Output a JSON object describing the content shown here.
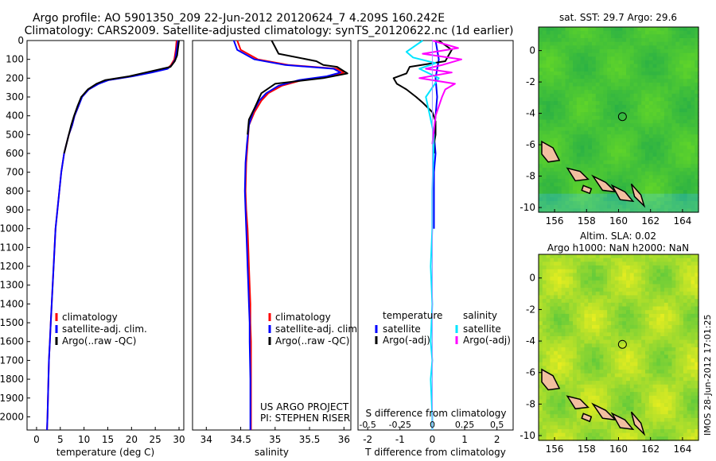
{
  "header": {
    "title_line1": "Argo profile: AO 5901350_209 22-Jun-2012 20120624_7 4.209S 160.242E",
    "title_line2": "Climatology: CARS2009. Satellite-adjusted climatology: synTS_20120622.nc (1d earlier)"
  },
  "side_stamp": "IMOS 28-Jun-2012 17:01:25",
  "colors": {
    "climatology": "#ff0000",
    "satellite": "#0000ff",
    "argo": "#000000",
    "sat_salinity": "#00e5ff",
    "argo_salinity": "#ff00ff",
    "land": "#f2bfa0",
    "sea": "#33cc33"
  },
  "chart_data": [
    {
      "id": "temperature",
      "type": "line",
      "xlabel": "temperature (deg C)",
      "ylabel": "",
      "xlim": [
        -2,
        31
      ],
      "ylim": [
        2070,
        0
      ],
      "xticks": [
        0,
        5,
        10,
        15,
        20,
        25,
        30
      ],
      "yticks": [
        0,
        100,
        200,
        300,
        400,
        500,
        600,
        700,
        800,
        900,
        1000,
        1100,
        1200,
        1300,
        1400,
        1500,
        1600,
        1700,
        1800,
        1900,
        2000
      ],
      "legend": [
        "climatology",
        "satellite-adj. clim.",
        "Argo(..raw -QC)"
      ],
      "series": [
        {
          "name": "climatology",
          "color": "#ff0000",
          "x": [
            29.5,
            29.3,
            29.0,
            28.3,
            27.5,
            24.0,
            20.0,
            15.0,
            13.0,
            11.0,
            9.5,
            8.8,
            8.0,
            7.5,
            6.8,
            6.3,
            5.8,
            5.2,
            4.8,
            4.4,
            4.0,
            3.8,
            3.6,
            3.4,
            3.2,
            3.0,
            2.8,
            2.6,
            2.5,
            2.4,
            2.3,
            2.2
          ],
          "y": [
            0,
            50,
            100,
            130,
            150,
            170,
            190,
            210,
            230,
            260,
            300,
            350,
            400,
            450,
            500,
            550,
            600,
            700,
            800,
            900,
            1000,
            1100,
            1200,
            1300,
            1400,
            1500,
            1600,
            1700,
            1800,
            1900,
            2000,
            2070
          ]
        },
        {
          "name": "satellite-adj. clim.",
          "color": "#0000ff",
          "x": [
            29.8,
            29.5,
            29.2,
            28.5,
            27.6,
            24.3,
            20.2,
            15.2,
            13.1,
            11.0,
            9.6,
            8.8,
            8.0,
            7.5,
            6.8,
            6.3,
            5.8,
            5.2,
            4.8,
            4.4,
            4.0,
            3.8,
            3.6,
            3.4,
            3.2,
            3.0,
            2.8,
            2.6,
            2.5,
            2.4,
            2.3,
            2.2
          ],
          "y": [
            0,
            50,
            100,
            130,
            150,
            170,
            190,
            210,
            230,
            260,
            300,
            350,
            400,
            450,
            500,
            550,
            600,
            700,
            800,
            900,
            1000,
            1100,
            1200,
            1300,
            1400,
            1500,
            1600,
            1700,
            1800,
            1900,
            2000,
            2070
          ]
        },
        {
          "name": "Argo(..raw -QC)",
          "color": "#000000",
          "x": [
            30.0,
            29.8,
            29.6,
            29.1,
            28.2,
            23.0,
            19.5,
            14.5,
            12.6,
            10.8,
            9.4,
            8.6,
            7.9,
            7.3,
            6.8,
            6.3,
            5.8
          ],
          "y": [
            0,
            40,
            80,
            110,
            140,
            170,
            190,
            210,
            230,
            260,
            300,
            350,
            400,
            450,
            500,
            550,
            600
          ]
        }
      ]
    },
    {
      "id": "salinity",
      "type": "line",
      "xlabel": "salinity",
      "ylabel": "",
      "xlim": [
        33.8,
        36.1
      ],
      "ylim": [
        2070,
        0
      ],
      "xticks": [
        34,
        34.5,
        35,
        35.5,
        36
      ],
      "legend": [
        "climatology",
        "satellite-adj. clim.",
        "Argo(..raw -QC)"
      ],
      "annotation": [
        "US ARGO PROJECT",
        "PI: STEPHEN RISER"
      ],
      "series": [
        {
          "name": "climatology",
          "color": "#ff0000",
          "x": [
            34.45,
            34.5,
            34.75,
            35.2,
            35.9,
            36.0,
            35.8,
            35.4,
            35.1,
            34.9,
            34.8,
            34.7,
            34.62,
            34.6,
            34.58,
            34.57,
            34.58,
            34.6,
            34.61,
            34.62,
            34.63,
            34.64,
            34.64,
            34.65,
            34.65,
            34.65
          ],
          "y": [
            0,
            50,
            100,
            130,
            150,
            170,
            190,
            210,
            240,
            280,
            320,
            380,
            450,
            550,
            650,
            800,
            900,
            1000,
            1100,
            1200,
            1300,
            1400,
            1500,
            1600,
            1800,
            2070
          ]
        },
        {
          "name": "satellite-adj. clim.",
          "color": "#0000ff",
          "x": [
            34.4,
            34.45,
            34.7,
            35.15,
            35.85,
            35.95,
            35.75,
            35.35,
            35.05,
            34.87,
            34.77,
            34.68,
            34.62,
            34.59,
            34.57,
            34.56,
            34.57,
            34.58,
            34.59,
            34.6,
            34.61,
            34.62,
            34.63,
            34.63,
            34.64,
            34.64
          ],
          "y": [
            0,
            50,
            100,
            130,
            150,
            170,
            190,
            210,
            240,
            280,
            320,
            380,
            450,
            550,
            650,
            800,
            900,
            1000,
            1100,
            1200,
            1300,
            1400,
            1500,
            1600,
            1800,
            2070
          ]
        },
        {
          "name": "Argo(..raw -QC)",
          "color": "#000000",
          "x": [
            34.95,
            35.05,
            35.6,
            35.7,
            35.9,
            36.05,
            35.7,
            35.0,
            34.8,
            34.75,
            34.7,
            34.62,
            34.6
          ],
          "y": [
            0,
            70,
            110,
            130,
            140,
            175,
            200,
            230,
            280,
            320,
            360,
            420,
            500
          ]
        }
      ]
    },
    {
      "id": "difference",
      "type": "line",
      "xlabel": "T difference from climatology",
      "xlabel_top": "S difference from climatology",
      "xlim": [
        -2.3,
        2.5
      ],
      "ylim": [
        2070,
        0
      ],
      "xticks": [
        -2,
        -1,
        0,
        1,
        2
      ],
      "xticks_top": [
        "-0.5",
        "-0.25",
        "0",
        "0.25",
        "0.5"
      ],
      "xticks_top_positions": [
        -2,
        -1,
        0,
        1,
        2
      ],
      "legend_temperature": {
        "title": "temperature",
        "items": [
          "satellite",
          "Argo(-adj)"
        ]
      },
      "legend_salinity": {
        "title": "salinity",
        "items": [
          "satellite",
          "Argo(-adj)"
        ]
      },
      "series": [
        {
          "name": "temperature satellite",
          "color": "#0000ff",
          "x": [
            0.1,
            0.2,
            0.1,
            0.15,
            0.1,
            0.05,
            0.1,
            0.05,
            0.05,
            0.05,
            0.05
          ],
          "y": [
            0,
            100,
            200,
            300,
            400,
            500,
            600,
            700,
            800,
            900,
            1000
          ]
        },
        {
          "name": "temperature Argo(-adj)",
          "color": "#000000",
          "x": [
            0.2,
            0.6,
            0.4,
            -0.7,
            -0.8,
            -1.2,
            -1.1,
            -0.8,
            -0.5,
            -0.3,
            0.0,
            0.1,
            0.1,
            0.05,
            0.05
          ],
          "y": [
            0,
            50,
            110,
            140,
            175,
            200,
            230,
            260,
            300,
            330,
            380,
            430,
            500,
            550,
            600
          ]
        },
        {
          "name": "salinity satellite",
          "color": "#00e5ff",
          "x": [
            -0.3,
            -0.8,
            -0.6,
            0.1,
            -0.4,
            0.2,
            -0.2,
            0.05,
            0.0,
            0.0,
            -0.05,
            0.0,
            -0.05,
            0.0,
            -0.05,
            0.0,
            0.0
          ],
          "y": [
            0,
            60,
            90,
            120,
            150,
            200,
            300,
            500,
            800,
            1000,
            1200,
            1400,
            1600,
            1700,
            1800,
            2000,
            2070
          ]
        },
        {
          "name": "salinity Argo(-adj)",
          "color": "#ff00ff",
          "x": [
            0.0,
            0.8,
            -0.3,
            0.9,
            0.3,
            -0.2,
            0.6,
            -0.4,
            0.7,
            0.4,
            0.3,
            0.1,
            0.0
          ],
          "y": [
            0,
            40,
            70,
            100,
            130,
            150,
            170,
            200,
            230,
            260,
            300,
            400,
            550
          ]
        }
      ]
    },
    {
      "id": "sst-map",
      "type": "heatmap",
      "title": "sat. SST: 29.7 Argo: 29.6",
      "xlim": [
        155,
        165
      ],
      "ylim": [
        -10.3,
        1.5
      ],
      "xticks": [
        156,
        158,
        160,
        162,
        164
      ],
      "yticks": [
        0,
        -2,
        -4,
        -6,
        -8,
        -10
      ],
      "argo_position": {
        "lon": 160.242,
        "lat": -4.209
      }
    },
    {
      "id": "sla-map",
      "type": "heatmap",
      "title": "Altim. SLA: 0.02",
      "subtitle": "Argo h1000: NaN h2000: NaN",
      "xlim": [
        155,
        165
      ],
      "ylim": [
        -10.3,
        1.5
      ],
      "xticks": [
        156,
        158,
        160,
        162,
        164
      ],
      "yticks": [
        0,
        -2,
        -4,
        -6,
        -8,
        -10
      ],
      "argo_position": {
        "lon": 160.242,
        "lat": -4.209
      }
    }
  ]
}
